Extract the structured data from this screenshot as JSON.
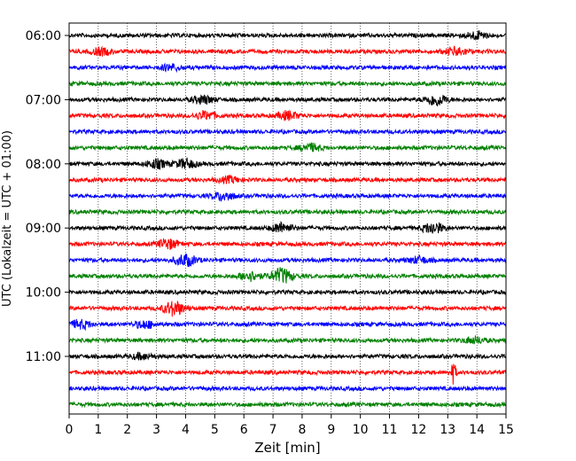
{
  "chart_data": {
    "type": "line",
    "title": "",
    "xlabel": "Zeit  [min]",
    "ylabel": "UTC (Lokalzeit = UTC + 01:00)",
    "xlim": [
      0,
      15
    ],
    "x_ticks": [
      0,
      1,
      2,
      3,
      4,
      5,
      6,
      7,
      8,
      9,
      10,
      11,
      12,
      13,
      14,
      15
    ],
    "x_tick_labels": [
      "0",
      "1",
      "2",
      "3",
      "4",
      "5",
      "6",
      "7",
      "8",
      "9",
      "10",
      "11",
      "12",
      "13",
      "14",
      "15"
    ],
    "grid": "vertical dotted lines at each minute",
    "y_tick_labels": [
      "06:00",
      "07:00",
      "08:00",
      "09:00",
      "10:00",
      "11:00"
    ],
    "trace_interval_minutes": 15,
    "trace_start": "06:00",
    "trace_count": 24,
    "trace_colors": [
      "#000000",
      "#ff0000",
      "#0000ff",
      "#008000"
    ],
    "events": [
      {
        "trace": 0,
        "minute": 14.0,
        "amplitude": 1.6
      },
      {
        "trace": 1,
        "minute": 1.1,
        "amplitude": 1.5
      },
      {
        "trace": 1,
        "minute": 13.3,
        "amplitude": 1.8
      },
      {
        "trace": 2,
        "minute": 3.5,
        "amplitude": 1.3
      },
      {
        "trace": 4,
        "minute": 4.6,
        "amplitude": 1.8
      },
      {
        "trace": 4,
        "minute": 12.6,
        "amplitude": 2.6
      },
      {
        "trace": 5,
        "minute": 4.7,
        "amplitude": 1.7
      },
      {
        "trace": 5,
        "minute": 7.5,
        "amplitude": 1.8
      },
      {
        "trace": 7,
        "minute": 8.3,
        "amplitude": 1.6
      },
      {
        "trace": 8,
        "minute": 3.0,
        "amplitude": 1.8
      },
      {
        "trace": 8,
        "minute": 4.0,
        "amplitude": 2.0
      },
      {
        "trace": 9,
        "minute": 5.5,
        "amplitude": 1.3
      },
      {
        "trace": 10,
        "minute": 5.3,
        "amplitude": 1.9
      },
      {
        "trace": 12,
        "minute": 7.3,
        "amplitude": 2.2
      },
      {
        "trace": 12,
        "minute": 12.5,
        "amplitude": 2.4
      },
      {
        "trace": 13,
        "minute": 3.4,
        "amplitude": 2.1
      },
      {
        "trace": 14,
        "minute": 4.0,
        "amplitude": 2.6
      },
      {
        "trace": 14,
        "minute": 12.0,
        "amplitude": 1.4
      },
      {
        "trace": 15,
        "minute": 7.3,
        "amplitude": 3.4
      },
      {
        "trace": 15,
        "minute": 6.2,
        "amplitude": 2.0
      },
      {
        "trace": 17,
        "minute": 3.6,
        "amplitude": 3.2
      },
      {
        "trace": 18,
        "minute": 0.4,
        "amplitude": 1.8
      },
      {
        "trace": 18,
        "minute": 2.6,
        "amplitude": 1.6
      },
      {
        "trace": 19,
        "minute": 13.9,
        "amplitude": 1.4
      },
      {
        "trace": 20,
        "minute": 2.5,
        "amplitude": 1.2
      },
      {
        "trace": 21,
        "minute": 13.2,
        "amplitude": 5.0
      }
    ]
  }
}
